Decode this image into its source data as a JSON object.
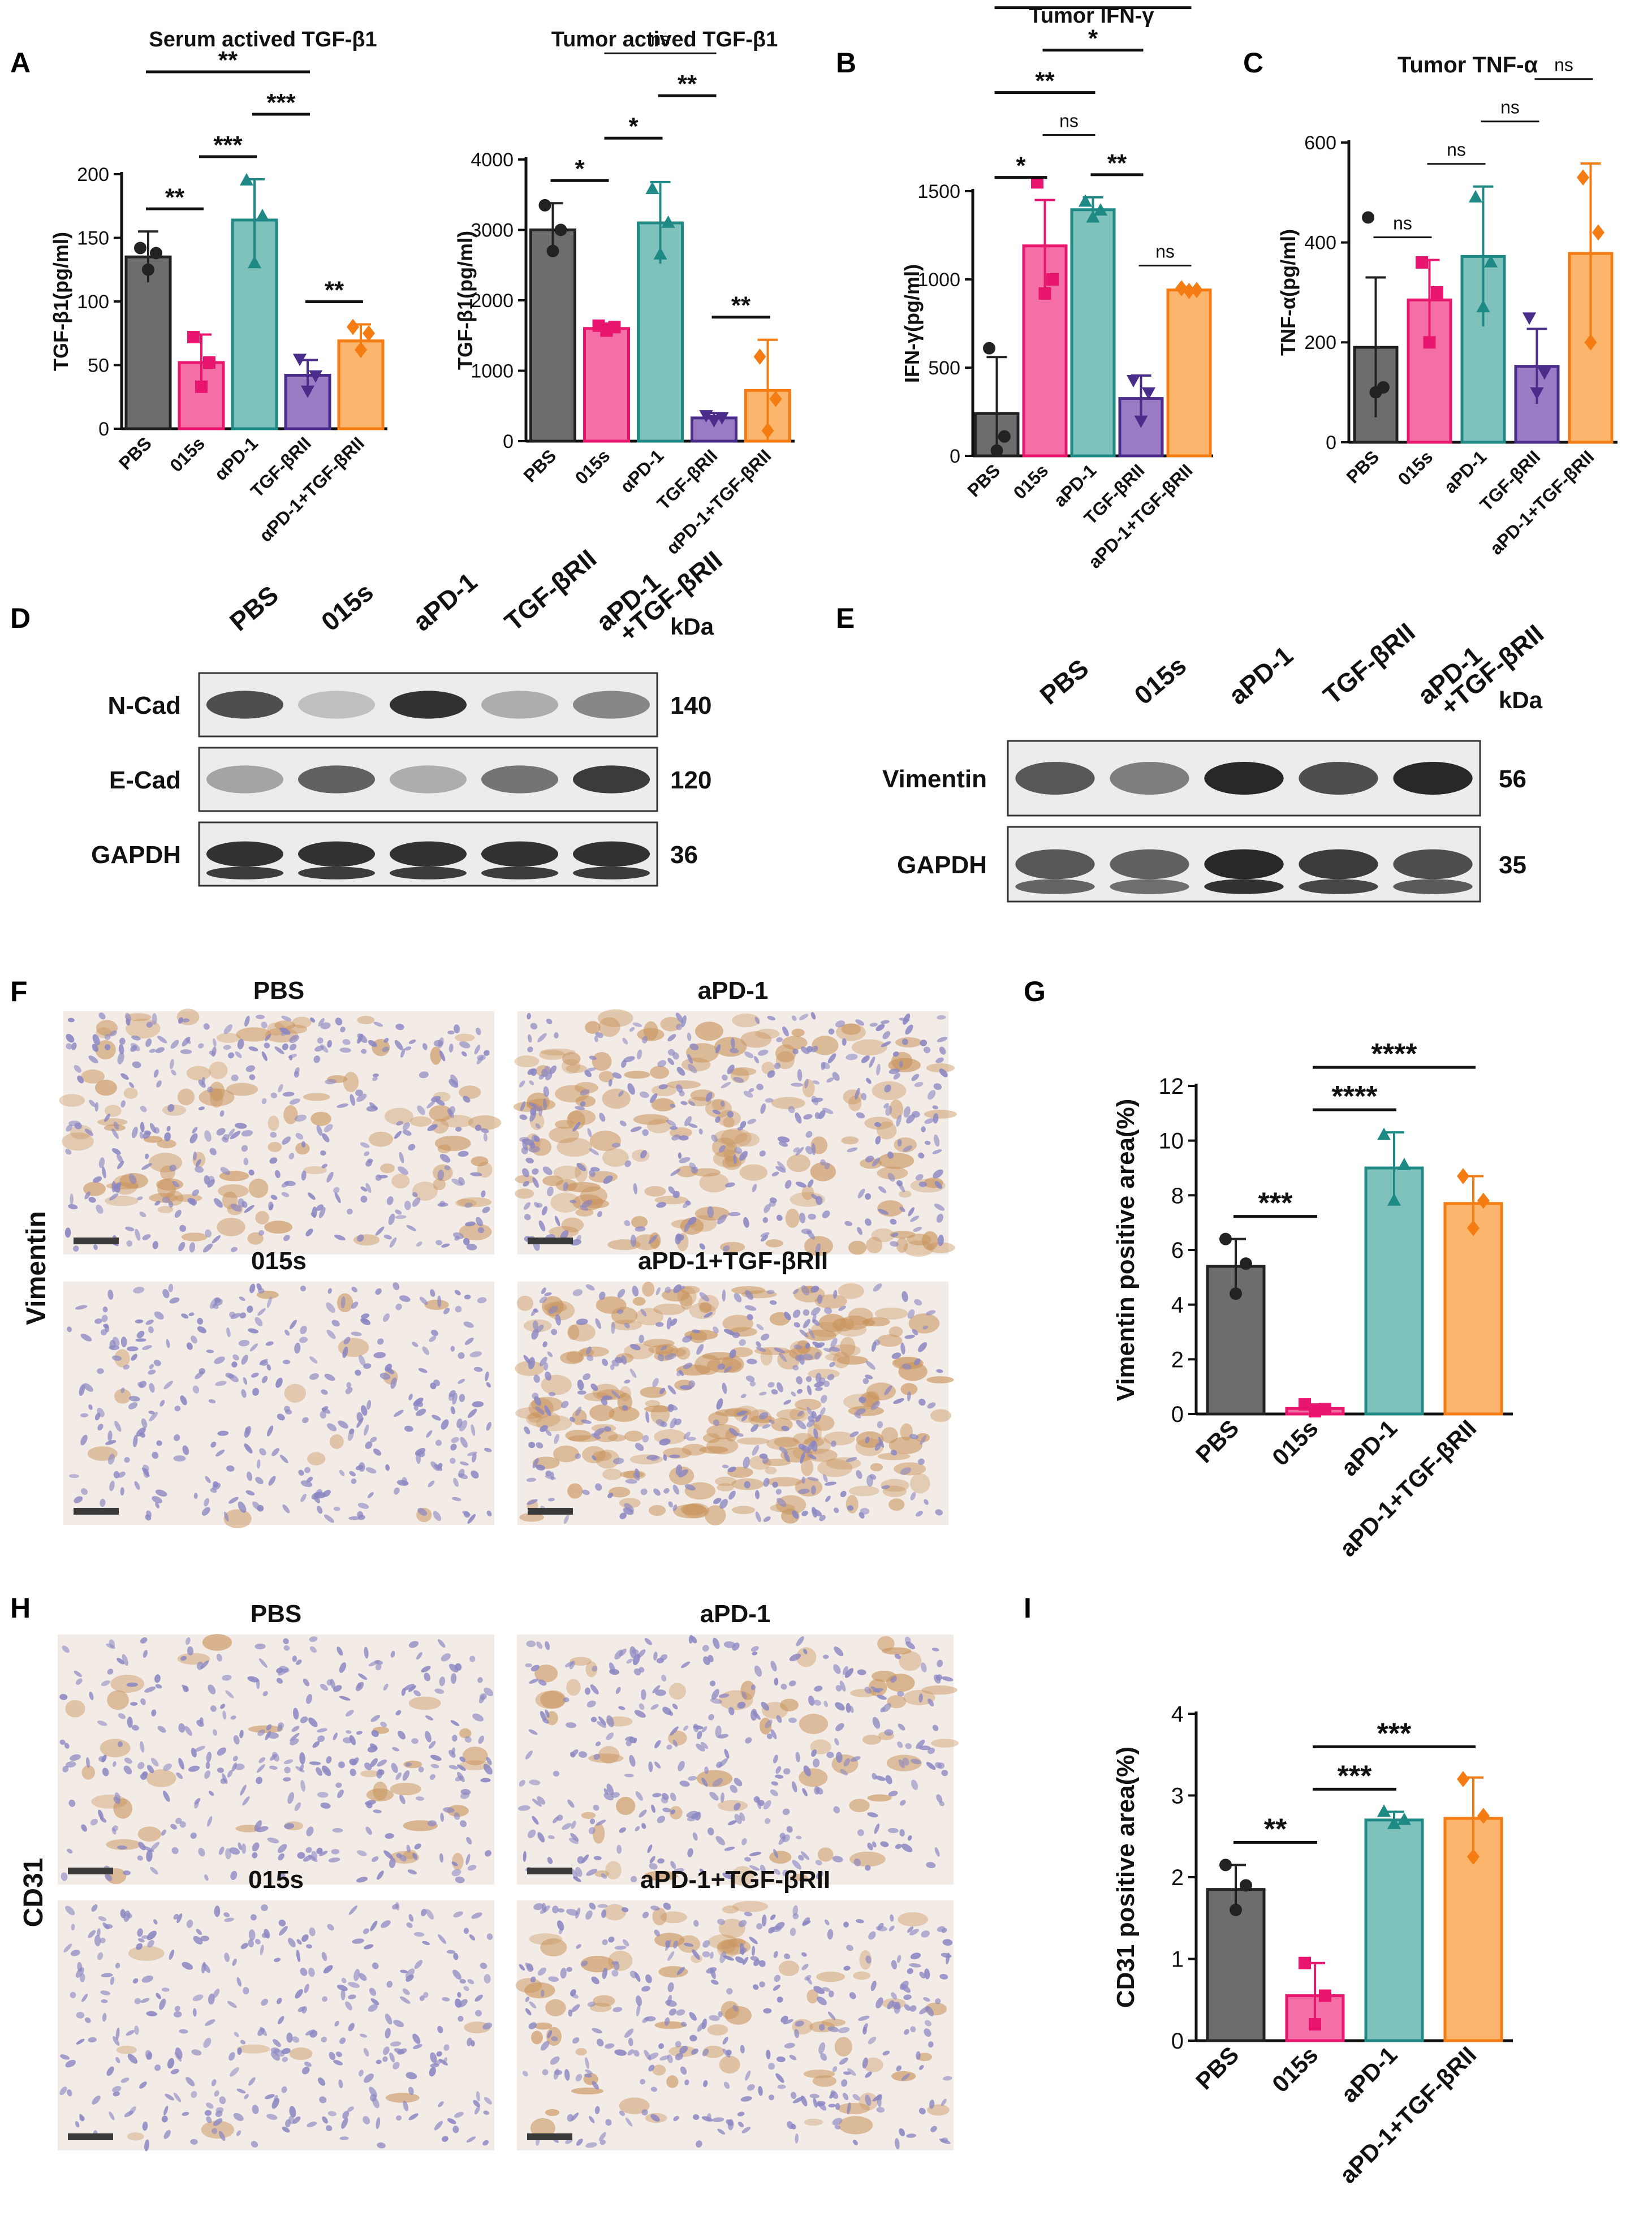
{
  "colors": {
    "PBS": "#6d6d6d",
    "015s": "#f36fa6",
    "aPD-1": "#7fc2bb",
    "TGF-βRII": "#9a7bc4",
    "combo": "#fbb56c",
    "015s_dark": "#e8166f",
    "aPD-1_dark": "#1f8a85",
    "TGF-βRII_dark": "#4a2c8a",
    "combo_dark": "#f47c12",
    "ihc_bg": "#f3ece6",
    "ihc_nuclei": "#8a86c2",
    "ihc_brown": "#c8935c"
  },
  "chart_data": [
    {
      "panel": "A",
      "type": "bar",
      "title": "Serum actived TGF-β1",
      "ylabel": "TGF-β1(pg/ml)",
      "categories": [
        "PBS",
        "015s",
        "αPD-1",
        "TGF-βRII",
        "αPD-1+TGF-βRII"
      ],
      "values": [
        135,
        52,
        164,
        42,
        69
      ],
      "errors": [
        20,
        22,
        32,
        12,
        13
      ],
      "points": [
        [
          142,
          138,
          125
        ],
        [
          72,
          52,
          33
        ],
        [
          195,
          167,
          130
        ],
        [
          55,
          42,
          30
        ],
        [
          80,
          75,
          62
        ]
      ],
      "ylim": [
        0,
        200
      ],
      "yticks": [
        0,
        50,
        100,
        150,
        200
      ],
      "significance": [
        {
          "a": 0,
          "b": 1,
          "label": "**"
        },
        {
          "a": 1,
          "b": 2,
          "label": "***"
        },
        {
          "a": 2,
          "b": 3,
          "label": "***"
        },
        {
          "a": 3,
          "b": 4,
          "label": "**"
        },
        {
          "a": 0,
          "b": 3,
          "label": "**"
        }
      ]
    },
    {
      "panel": "A2",
      "type": "bar",
      "title": "Tumor actived TGF-β1",
      "ylabel": "TGF-β1(pg/ml)",
      "categories": [
        "PBS",
        "015s",
        "αPD-1",
        "TGF-βRII",
        "αPD-1+TGF-βRII"
      ],
      "values": [
        3000,
        1600,
        3100,
        330,
        720
      ],
      "errors": [
        380,
        70,
        580,
        70,
        720
      ],
      "points": [
        [
          3350,
          3000,
          2700
        ],
        [
          1640,
          1620,
          1570
        ],
        [
          3580,
          3100,
          2650
        ],
        [
          370,
          340,
          300
        ],
        [
          1200,
          600,
          150
        ]
      ],
      "ylim": [
        0,
        4000
      ],
      "yticks": [
        0,
        1000,
        2000,
        3000,
        4000
      ],
      "significance": [
        {
          "a": 0,
          "b": 1,
          "label": "*"
        },
        {
          "a": 1,
          "b": 2,
          "label": "*"
        },
        {
          "a": 2,
          "b": 3,
          "label": "**"
        },
        {
          "a": 1,
          "b": 3,
          "label": "ns"
        },
        {
          "a": 3,
          "b": 4,
          "label": "**"
        }
      ]
    },
    {
      "panel": "B",
      "type": "bar",
      "title": "Tumor IFN-γ",
      "ylabel": "IFN-γ(pg/ml)",
      "categories": [
        "PBS",
        "015s",
        "aPD-1",
        "TGF-βRII",
        "aPD-1+TGF-βRII"
      ],
      "values": [
        240,
        1190,
        1395,
        325,
        940
      ],
      "errors": [
        320,
        260,
        70,
        130,
        10
      ],
      "points": [
        [
          610,
          110,
          30
        ],
        [
          1550,
          1000,
          920
        ],
        [
          1440,
          1390,
          1350
        ],
        [
          430,
          360,
          200
        ],
        [
          950,
          940,
          935
        ]
      ],
      "ylim": [
        0,
        1500
      ],
      "yticks": [
        0,
        500,
        1000,
        1500
      ],
      "significance": [
        {
          "a": 0,
          "b": 1,
          "label": "*"
        },
        {
          "a": 1,
          "b": 2,
          "label": "ns"
        },
        {
          "a": 2,
          "b": 3,
          "label": "**"
        },
        {
          "a": 3,
          "b": 4,
          "label": "ns"
        },
        {
          "a": 0,
          "b": 2,
          "label": "**"
        },
        {
          "a": 1,
          "b": 3,
          "label": "*"
        },
        {
          "a": 0,
          "b": 4,
          "label": "*"
        }
      ]
    },
    {
      "panel": "C",
      "type": "bar",
      "title": "Tumor TNF-α",
      "ylabel": "TNF-α(pg/ml)",
      "categories": [
        "PBS",
        "015s",
        "aPD-1",
        "TGF-βRII",
        "aPD-1+TGF-βRII"
      ],
      "values": [
        190,
        285,
        372,
        152,
        378
      ],
      "errors": [
        140,
        80,
        140,
        75,
        180
      ],
      "points": [
        [
          450,
          110,
          100
        ],
        [
          360,
          300,
          200
        ],
        [
          490,
          360,
          270
        ],
        [
          250,
          140,
          100
        ],
        [
          530,
          420,
          200
        ]
      ],
      "ylim": [
        0,
        600
      ],
      "yticks": [
        0,
        200,
        400,
        600
      ],
      "significance": [
        {
          "a": 0,
          "b": 1,
          "label": "ns"
        },
        {
          "a": 1,
          "b": 2,
          "label": "ns"
        },
        {
          "a": 2,
          "b": 3,
          "label": "ns"
        },
        {
          "a": 3,
          "b": 4,
          "label": "ns"
        }
      ]
    },
    {
      "panel": "G",
      "type": "bar",
      "ylabel": "Vimentin positive area(%)",
      "categories": [
        "PBS",
        "015s",
        "aPD-1",
        "aPD-1+TGF-βRII"
      ],
      "values": [
        5.4,
        0.2,
        9.0,
        7.7
      ],
      "errors": [
        1.0,
        0.15,
        1.3,
        1.0
      ],
      "points": [
        [
          6.4,
          5.5,
          4.4
        ],
        [
          0.35,
          0.18,
          0.1
        ],
        [
          10.2,
          9.1,
          7.8
        ],
        [
          8.7,
          7.8,
          6.8
        ]
      ],
      "ylim": [
        0,
        12
      ],
      "yticks": [
        0,
        2,
        4,
        6,
        8,
        10,
        12
      ],
      "significance": [
        {
          "a": 0,
          "b": 1,
          "label": "***"
        },
        {
          "a": 1,
          "b": 2,
          "label": "****"
        },
        {
          "a": 1,
          "b": 3,
          "label": "****"
        }
      ]
    },
    {
      "panel": "I",
      "type": "bar",
      "ylabel": "CD31 positive area(%)",
      "categories": [
        "PBS",
        "015s",
        "aPD-1",
        "aPD-1+TGF-βRII"
      ],
      "values": [
        1.85,
        0.55,
        2.7,
        2.72
      ],
      "errors": [
        0.3,
        0.4,
        0.1,
        0.5
      ],
      "points": [
        [
          2.15,
          1.9,
          1.6
        ],
        [
          0.95,
          0.55,
          0.2
        ],
        [
          2.8,
          2.7,
          2.65
        ],
        [
          3.2,
          2.75,
          2.25
        ]
      ],
      "ylim": [
        0,
        4
      ],
      "yticks": [
        0,
        1,
        2,
        3,
        4
      ],
      "significance": [
        {
          "a": 0,
          "b": 1,
          "label": "**"
        },
        {
          "a": 1,
          "b": 2,
          "label": "***"
        },
        {
          "a": 1,
          "b": 3,
          "label": "***"
        }
      ]
    }
  ],
  "panel_letters": {
    "A": "A",
    "B": "B",
    "C": "C",
    "D": "D",
    "E": "E",
    "F": "F",
    "G": "G",
    "H": "H",
    "I": "I"
  },
  "blot_D": {
    "lanes": [
      "PBS",
      "015s",
      "aPD-1",
      "TGF-βRII",
      "aPD-1\n+TGF-βRII"
    ],
    "kda_label": "kDa",
    "rows": [
      {
        "label": "N-Cad",
        "kda": "140",
        "intensity": [
          0.75,
          0.15,
          0.9,
          0.25,
          0.45
        ]
      },
      {
        "label": "E-Cad",
        "kda": "120",
        "intensity": [
          0.3,
          0.65,
          0.25,
          0.55,
          0.85
        ]
      },
      {
        "label": "GAPDH",
        "kda": "36",
        "intensity": [
          0.9,
          0.9,
          0.9,
          0.9,
          0.9
        ]
      }
    ]
  },
  "blot_E": {
    "lanes": [
      "PBS",
      "015s",
      "aPD-1",
      "TGF-βRII",
      "aPD-1\n+TGF-βRII"
    ],
    "kda_label": "kDa",
    "rows": [
      {
        "label": "Vimentin",
        "kda": "56",
        "intensity": [
          0.7,
          0.5,
          0.95,
          0.75,
          0.95
        ]
      },
      {
        "label": "GAPDH",
        "kda": "35",
        "intensity": [
          0.7,
          0.65,
          0.95,
          0.85,
          0.75
        ]
      }
    ]
  },
  "ihc_F": {
    "row_label": "Vimentin",
    "panels": [
      {
        "title": "PBS",
        "brown": 0.35
      },
      {
        "title": "aPD-1",
        "brown": 0.55
      },
      {
        "title": "015s",
        "brown": 0.05
      },
      {
        "title": "aPD-1+TGF-βRII",
        "brown": 0.75
      }
    ]
  },
  "ihc_H": {
    "row_label": "CD31",
    "panels": [
      {
        "title": "PBS",
        "brown": 0.12
      },
      {
        "title": "aPD-1",
        "brown": 0.2
      },
      {
        "title": "015s",
        "brown": 0.03
      },
      {
        "title": "aPD-1+TGF-βRII",
        "brown": 0.25
      }
    ]
  }
}
